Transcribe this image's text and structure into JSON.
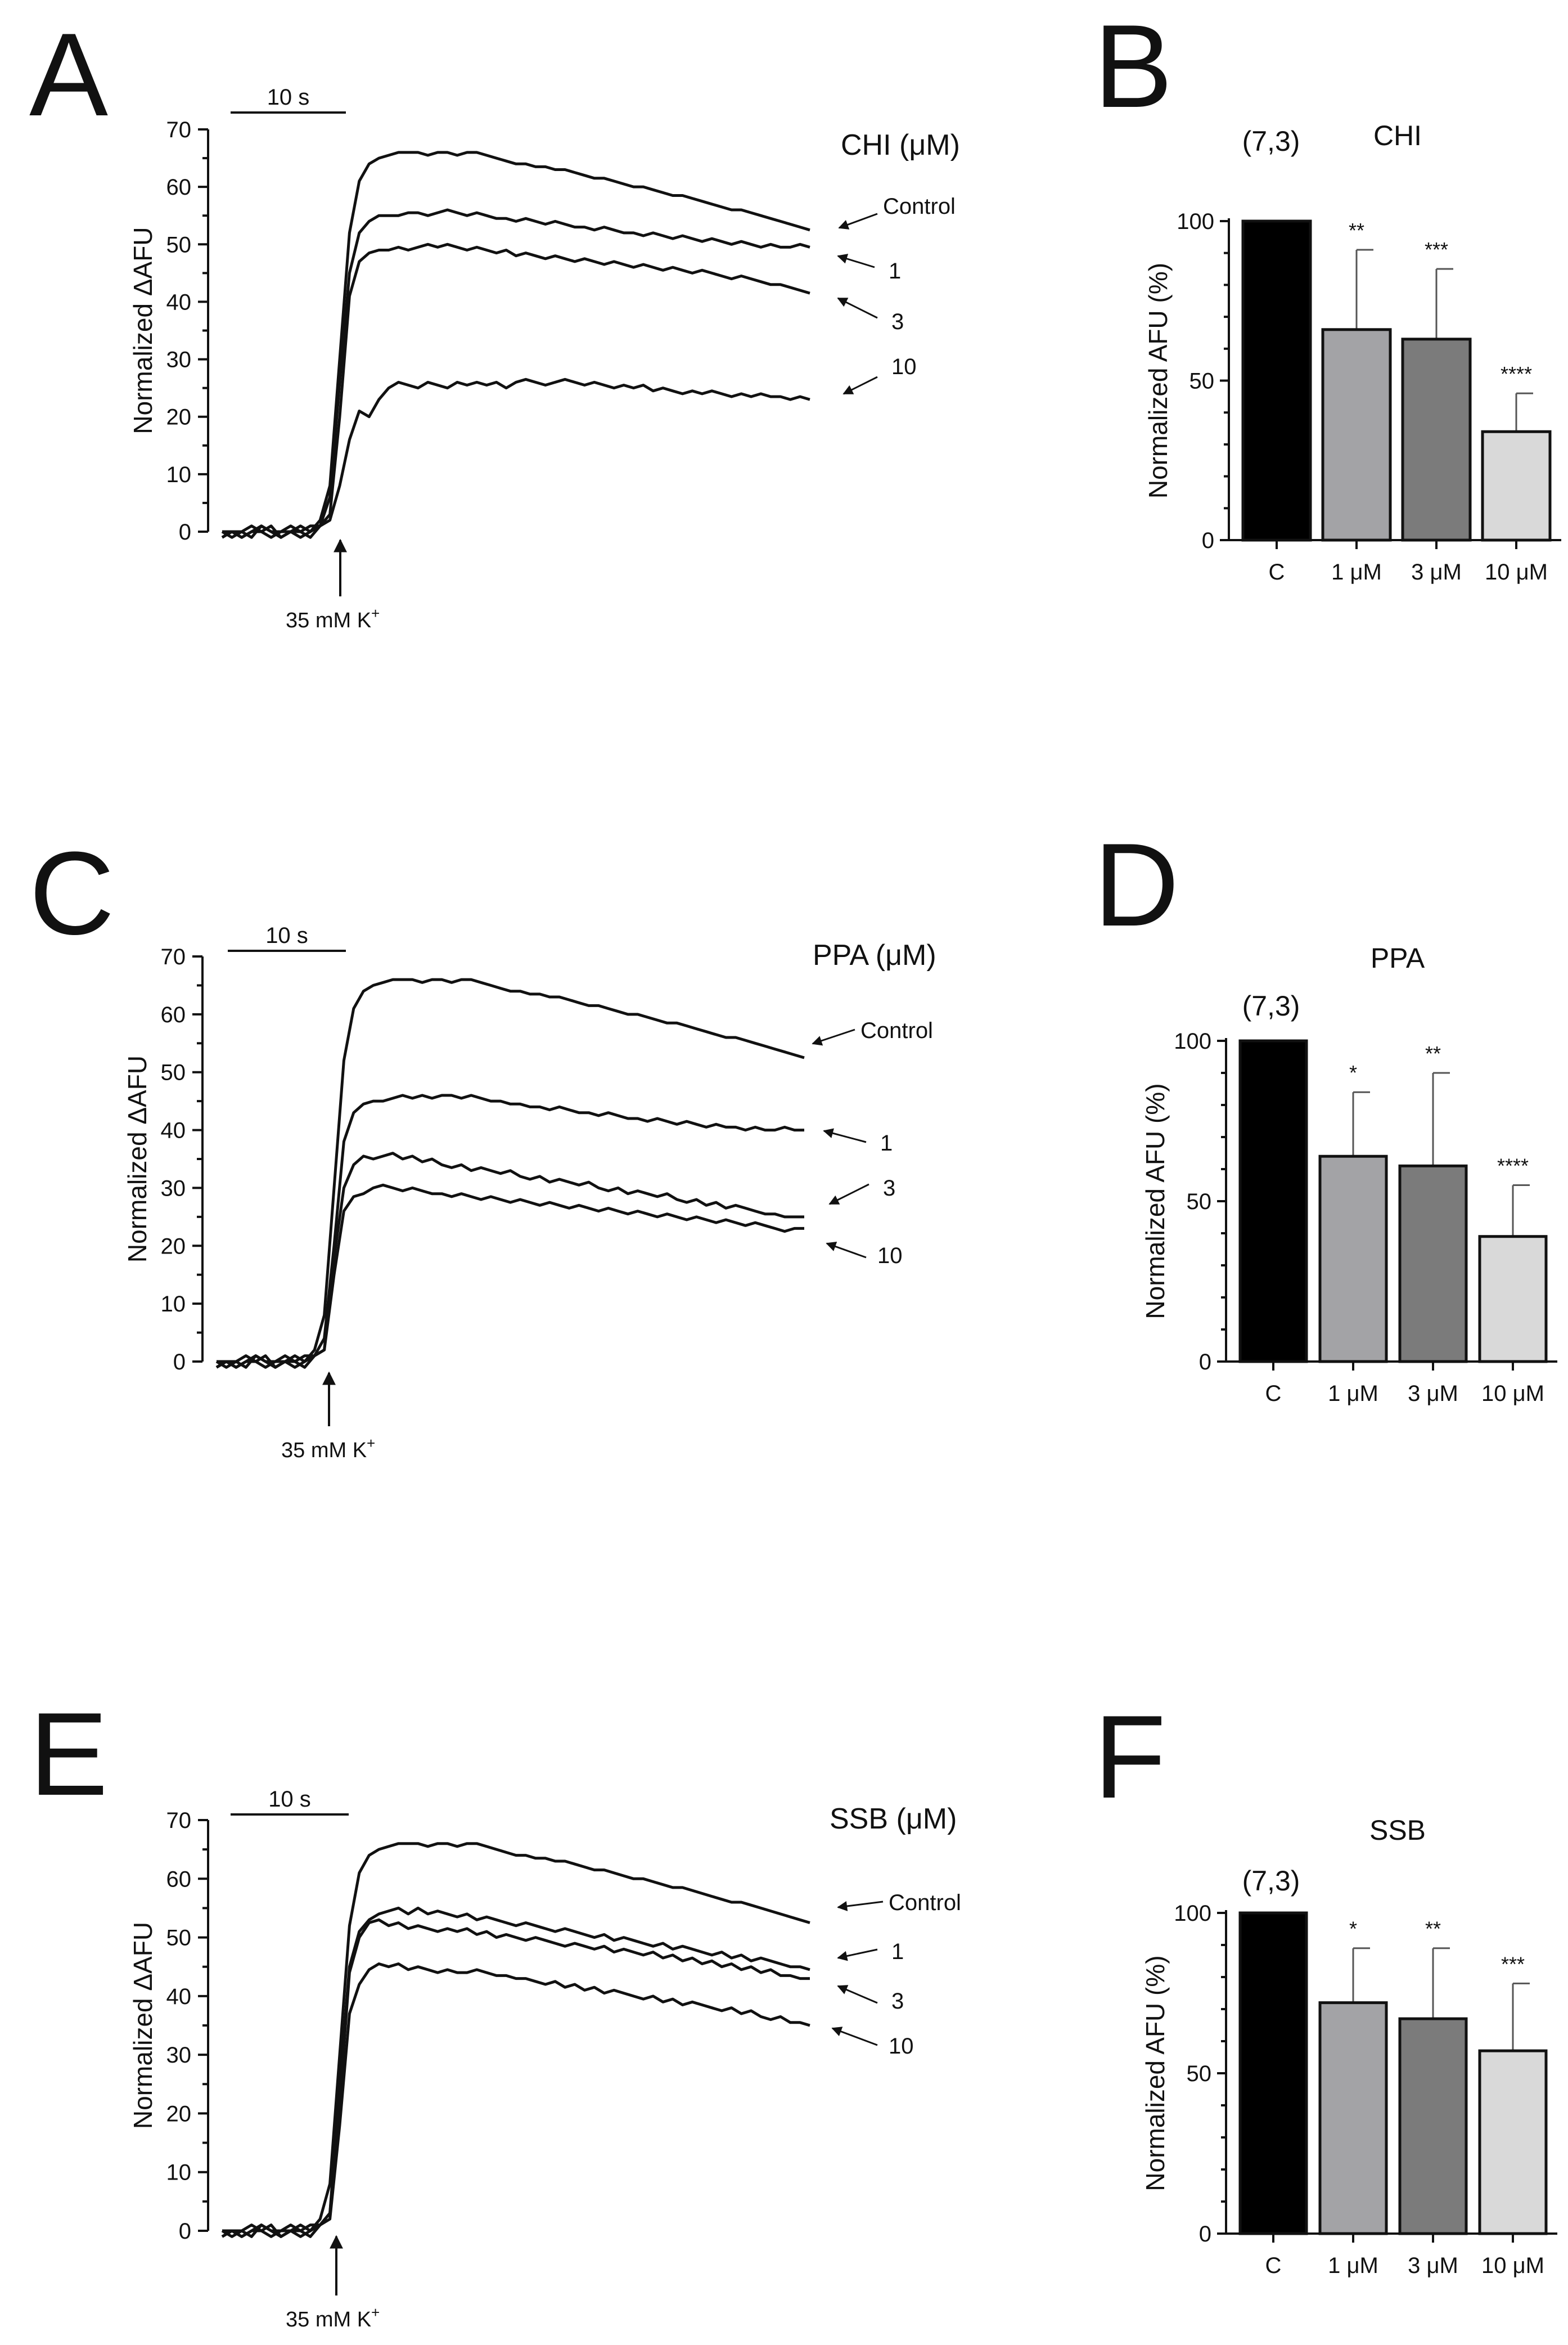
{
  "chart_data": [
    {
      "panel": "A",
      "type": "line",
      "condition_label": "CHI (μM)",
      "ylabel": "Normalized ΔAFU",
      "ylim": [
        0,
        70
      ],
      "yticks": [
        "0",
        "10",
        "20",
        "30",
        "40",
        "50",
        "60",
        "70"
      ],
      "scale_bar_label": "10 s",
      "stimulus_label": "35 mM K",
      "stimulus_superscript": "+",
      "series": [
        {
          "name": "Control",
          "values": [
            -1,
            0,
            -1,
            0,
            1,
            0,
            -1,
            0,
            1,
            0,
            2,
            8,
            30,
            52,
            61,
            64,
            65,
            65.5,
            66,
            66,
            66,
            65.5,
            66,
            66,
            65.5,
            66,
            66,
            65.5,
            65,
            64.5,
            64,
            64,
            63.5,
            63.5,
            63,
            63,
            62.5,
            62,
            61.5,
            61.5,
            61,
            60.5,
            60,
            60,
            59.5,
            59,
            58.5,
            58.5,
            58,
            57.5,
            57,
            56.5,
            56,
            56,
            55.5,
            55,
            54.5,
            54,
            53.5,
            53,
            52.5
          ]
        },
        {
          "name": "1",
          "values": [
            0,
            -1,
            0,
            1,
            0,
            -1,
            0,
            0,
            -1,
            0,
            1,
            6,
            26,
            45,
            52,
            54,
            55,
            55,
            55,
            55.5,
            55.5,
            55,
            55.5,
            56,
            55.5,
            55,
            55.5,
            55,
            54.5,
            54.5,
            54,
            54.5,
            54,
            53.5,
            54,
            53.5,
            53,
            53,
            52.5,
            53,
            52.5,
            52,
            52,
            51.5,
            52,
            51.5,
            51,
            51.5,
            51,
            50.5,
            51,
            50.5,
            50,
            50.5,
            50,
            49.5,
            50,
            49.5,
            49.5,
            50,
            49.5
          ]
        },
        {
          "name": "3",
          "values": [
            -1,
            0,
            0,
            -1,
            1,
            0,
            0,
            1,
            0,
            -1,
            1,
            3,
            20,
            41,
            47,
            48.5,
            49,
            49,
            49.5,
            49,
            49.5,
            50,
            49.5,
            50,
            49.5,
            49,
            49.5,
            49,
            48.5,
            49,
            48,
            48.5,
            48,
            47.5,
            48,
            47.5,
            47,
            47.5,
            47,
            46.5,
            47,
            46.5,
            46,
            46.5,
            46,
            45.5,
            46,
            45.5,
            45,
            45.5,
            45,
            44.5,
            44,
            44.5,
            44,
            43.5,
            43,
            43,
            42.5,
            42,
            41.5
          ]
        },
        {
          "name": "10",
          "values": [
            0,
            0,
            -1,
            0,
            0,
            1,
            -1,
            0,
            0,
            1,
            1,
            2,
            8,
            16,
            21,
            20,
            23,
            25,
            26,
            25.5,
            25,
            26,
            25.5,
            25,
            26,
            25.5,
            26,
            25.5,
            26,
            25,
            26,
            26.5,
            26,
            25.5,
            26,
            26.5,
            26,
            25.5,
            26,
            25.5,
            25,
            25.5,
            25,
            25.5,
            24.5,
            25,
            24.5,
            24,
            24.5,
            24,
            24.5,
            24,
            23.5,
            24,
            23.5,
            24,
            23.5,
            23.5,
            23,
            23.5,
            23
          ]
        }
      ]
    },
    {
      "panel": "B",
      "type": "bar",
      "title": "CHI",
      "n_label": "(7,3)",
      "ylabel": "Normalized AFU (%)",
      "ylim": [
        0,
        100
      ],
      "yticks": [
        "0",
        "50",
        "100"
      ],
      "categories": [
        "C",
        "1 μM",
        "3 μM",
        "10 μM"
      ],
      "values": [
        100,
        66,
        63,
        34
      ],
      "errors": [
        0,
        25,
        22,
        12
      ],
      "significance": [
        "",
        "**",
        "***",
        "****"
      ],
      "colors": [
        "#000000",
        "#a3a3a6",
        "#7b7b7b",
        "#d9d9d9"
      ]
    },
    {
      "panel": "C",
      "type": "line",
      "condition_label": "PPA (μM)",
      "ylabel": "Normalized ΔAFU",
      "ylim": [
        0,
        70
      ],
      "yticks": [
        "0",
        "10",
        "20",
        "30",
        "40",
        "50",
        "60",
        "70"
      ],
      "scale_bar_label": "10 s",
      "stimulus_label": "35 mM K",
      "stimulus_superscript": "+",
      "series": [
        {
          "name": "Control",
          "values": [
            -1,
            0,
            -1,
            0,
            1,
            0,
            -1,
            0,
            1,
            0,
            2,
            8,
            30,
            52,
            61,
            64,
            65,
            65.5,
            66,
            66,
            66,
            65.5,
            66,
            66,
            65.5,
            66,
            66,
            65.5,
            65,
            64.5,
            64,
            64,
            63.5,
            63.5,
            63,
            63,
            62.5,
            62,
            61.5,
            61.5,
            61,
            60.5,
            60,
            60,
            59.5,
            59,
            58.5,
            58.5,
            58,
            57.5,
            57,
            56.5,
            56,
            56,
            55.5,
            55,
            54.5,
            54,
            53.5,
            53,
            52.5
          ]
        },
        {
          "name": "1",
          "values": [
            0,
            -1,
            0,
            1,
            0,
            -1,
            0,
            0,
            -1,
            0,
            1,
            4,
            20,
            38,
            43,
            44.5,
            45,
            45,
            45.5,
            46,
            45.5,
            46,
            45.5,
            46,
            46,
            45.5,
            46,
            45.5,
            45,
            45,
            44.5,
            44.5,
            44,
            44,
            43.5,
            44,
            43.5,
            43,
            43,
            42.5,
            43,
            42.5,
            42,
            42,
            41.5,
            42,
            41.5,
            41,
            41.5,
            41,
            40.5,
            41,
            40.5,
            40.5,
            40,
            40.5,
            40,
            40,
            40.5,
            40,
            40
          ]
        },
        {
          "name": "3",
          "values": [
            -1,
            0,
            0,
            -1,
            1,
            0,
            0,
            1,
            0,
            -1,
            1,
            2,
            18,
            30,
            34,
            35.5,
            35,
            35.5,
            36,
            35,
            35.5,
            34.5,
            35,
            34,
            33.5,
            34,
            33,
            33.5,
            33,
            32.5,
            33,
            32,
            31.5,
            32,
            31,
            31.5,
            31,
            30.5,
            31,
            30,
            29.5,
            30,
            29,
            29.5,
            29,
            28.5,
            29,
            28,
            27.5,
            28,
            27,
            27.5,
            26.5,
            27,
            26.5,
            26,
            25.5,
            25.5,
            25,
            25,
            25
          ]
        },
        {
          "name": "10",
          "values": [
            0,
            0,
            -1,
            0,
            0,
            1,
            -1,
            0,
            0,
            1,
            1,
            2,
            15,
            26,
            28.5,
            29,
            30,
            30.5,
            30,
            29.5,
            30,
            29.5,
            29,
            29,
            28.5,
            29,
            28.5,
            28,
            28.5,
            28,
            27.5,
            28,
            27.5,
            27,
            27.5,
            27,
            26.5,
            27,
            26.5,
            26,
            26.5,
            26,
            25.5,
            26,
            25.5,
            25,
            25.5,
            25,
            24.5,
            25,
            24.5,
            24,
            24.5,
            24,
            23.5,
            24,
            23.5,
            23,
            22.5,
            23,
            23
          ]
        }
      ]
    },
    {
      "panel": "D",
      "type": "bar",
      "title": "PPA",
      "n_label": "(7,3)",
      "ylabel": "Normalized AFU (%)",
      "ylim": [
        0,
        100
      ],
      "yticks": [
        "0",
        "50",
        "100"
      ],
      "categories": [
        "C",
        "1 μM",
        "3 μM",
        "10 μM"
      ],
      "values": [
        100,
        64,
        61,
        39
      ],
      "errors": [
        0,
        20,
        29,
        16
      ],
      "significance": [
        "",
        "*",
        "**",
        "****"
      ],
      "colors": [
        "#000000",
        "#a3a3a6",
        "#7b7b7b",
        "#d9d9d9"
      ]
    },
    {
      "panel": "E",
      "type": "line",
      "condition_label": "SSB (μM)",
      "ylabel": "Normalized ΔAFU",
      "ylim": [
        0,
        70
      ],
      "yticks": [
        "0",
        "10",
        "20",
        "30",
        "40",
        "50",
        "60",
        "70"
      ],
      "scale_bar_label": "10 s",
      "stimulus_label": "35 mM K",
      "stimulus_superscript": "+",
      "series": [
        {
          "name": "Control",
          "values": [
            -1,
            0,
            -1,
            0,
            1,
            0,
            -1,
            0,
            1,
            0,
            2,
            8,
            30,
            52,
            61,
            64,
            65,
            65.5,
            66,
            66,
            66,
            65.5,
            66,
            66,
            65.5,
            66,
            66,
            65.5,
            65,
            64.5,
            64,
            64,
            63.5,
            63.5,
            63,
            63,
            62.5,
            62,
            61.5,
            61.5,
            61,
            60.5,
            60,
            60,
            59.5,
            59,
            58.5,
            58.5,
            58,
            57.5,
            57,
            56.5,
            56,
            56,
            55.5,
            55,
            54.5,
            54,
            53.5,
            53,
            52.5
          ]
        },
        {
          "name": "1",
          "values": [
            0,
            -1,
            0,
            1,
            0,
            -1,
            0,
            0,
            -1,
            0,
            1,
            3,
            25,
            45,
            51,
            53,
            54,
            54.5,
            55,
            54,
            55,
            54,
            54.5,
            54,
            53.5,
            54,
            53,
            53.5,
            53,
            52.5,
            52,
            52.5,
            52,
            51.5,
            51,
            51.5,
            51,
            50.5,
            50,
            50.5,
            49.5,
            50,
            49.5,
            49,
            48.5,
            49,
            48,
            48.5,
            48,
            47.5,
            47,
            47.5,
            46.5,
            47,
            46,
            46.5,
            46,
            45.5,
            45,
            45,
            44.5
          ]
        },
        {
          "name": "3",
          "values": [
            -1,
            0,
            0,
            -1,
            1,
            0,
            0,
            1,
            0,
            -1,
            1,
            3,
            22,
            44,
            50,
            52.5,
            53,
            52,
            52.5,
            51.5,
            52,
            51.5,
            51,
            51.5,
            51,
            51.5,
            50.5,
            51,
            50,
            50.5,
            50,
            49.5,
            50,
            49.5,
            49,
            48.5,
            49,
            48.5,
            48,
            48.5,
            47.5,
            48,
            47.5,
            47,
            47.5,
            46.5,
            47,
            46,
            46.5,
            45.5,
            46,
            45,
            45.5,
            44.5,
            45,
            44,
            44.5,
            43.5,
            43.5,
            43,
            43
          ]
        },
        {
          "name": "10",
          "values": [
            0,
            0,
            -1,
            0,
            0,
            1,
            -1,
            0,
            0,
            1,
            1,
            2,
            18,
            37,
            42,
            44.5,
            45.5,
            45,
            45.5,
            44.5,
            45,
            44.5,
            44,
            44.5,
            44,
            44,
            44.5,
            44,
            43.5,
            43.5,
            43,
            43,
            42.5,
            42,
            42.5,
            41.5,
            42,
            41,
            41.5,
            40.5,
            41,
            40.5,
            40,
            39.5,
            40,
            39,
            39.5,
            38.5,
            39,
            38.5,
            38,
            37.5,
            38,
            37,
            37.5,
            36.5,
            36,
            36.5,
            35.5,
            35.5,
            35
          ]
        }
      ]
    },
    {
      "panel": "F",
      "type": "bar",
      "title": "SSB",
      "n_label": "(7,3)",
      "ylabel": "Normalized AFU (%)",
      "ylim": [
        0,
        100
      ],
      "yticks": [
        "0",
        "50",
        "100"
      ],
      "categories": [
        "C",
        "1 μM",
        "3 μM",
        "10 μM"
      ],
      "values": [
        100,
        72,
        67,
        57
      ],
      "errors": [
        0,
        17,
        22,
        21
      ],
      "significance": [
        "",
        "*",
        "**",
        "***"
      ],
      "colors": [
        "#000000",
        "#a3a3a6",
        "#7b7b7b",
        "#d9d9d9"
      ]
    }
  ]
}
